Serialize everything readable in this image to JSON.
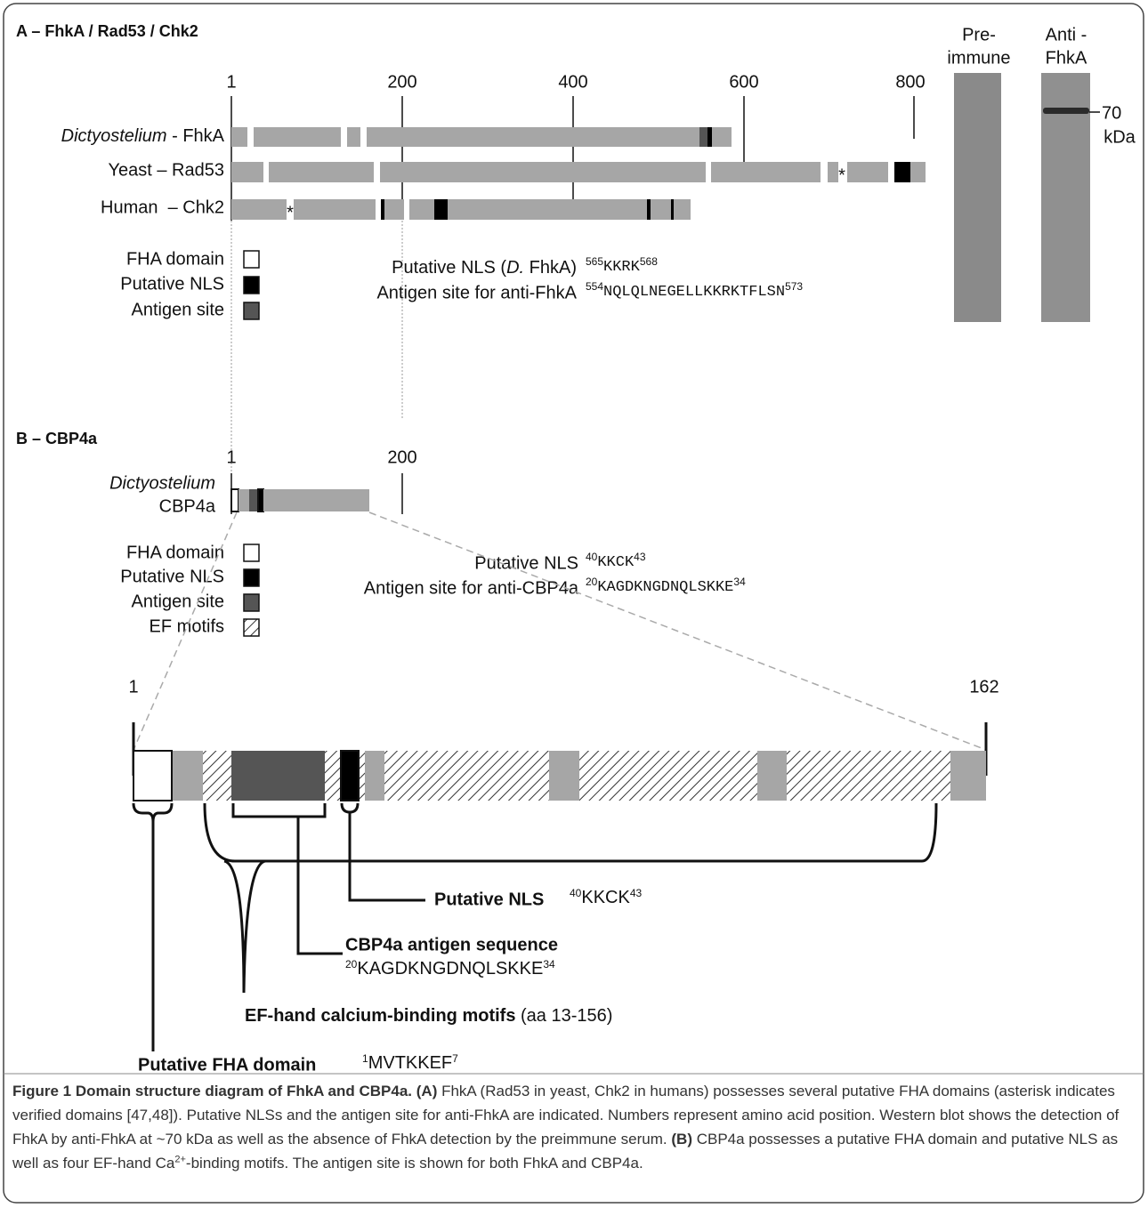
{
  "panel_a": {
    "title": "A – FhkA / Rad53 / Chk2",
    "scale": [
      "1",
      "200",
      "400",
      "600",
      "800"
    ],
    "proteins": [
      {
        "organism": "Dictyostelium",
        "name": " - FhkA"
      },
      {
        "name": "Yeast – Rad53"
      },
      {
        "name": "Human  – Chk2"
      }
    ],
    "asterisk": "*",
    "legend": [
      "FHA domain",
      "Putative NLS",
      "Antigen site"
    ],
    "nls": {
      "label": "Putative NLS (",
      "species": "D.",
      "label_end": " FhkA)",
      "start": "565",
      "sequence": "KKRK",
      "end": "568"
    },
    "antigen": {
      "label": "Antigen site for anti-FhkA",
      "start": "554",
      "sequence": "NQLQLNEGELLKKRKTFLSN",
      "end": "573"
    },
    "blot": {
      "lanes": [
        [
          "Pre-",
          "immune"
        ],
        [
          "Anti -",
          "FhkA"
        ]
      ],
      "marker": "70",
      "marker_unit": "kDa"
    }
  },
  "panel_b": {
    "title": "B – CBP4a",
    "scale": [
      "1",
      "200"
    ],
    "protein": {
      "organism": "Dictyostelium",
      "name": "CBP4a"
    },
    "legend": [
      "FHA domain",
      "Putative NLS",
      "Antigen site",
      "EF motifs"
    ],
    "nls": {
      "label": "Putative NLS",
      "start": "40",
      "sequence": "KKCK",
      "end": "43"
    },
    "antigen": {
      "label": "Antigen site for anti-CBP4a",
      "start": "20",
      "sequence": "KAGDKNGDNQLSKKE",
      "end": "34"
    }
  },
  "detail": {
    "scale": [
      "1",
      "162"
    ],
    "nls": {
      "label": "Putative NLS",
      "start": "40",
      "sequence": "KKCK",
      "end": "43"
    },
    "antigen": {
      "label": "CBP4a antigen sequence",
      "start": "20",
      "sequence": "KAGDKNGDNQLSKKE",
      "end": "34"
    },
    "ef": {
      "label": "EF-hand calcium-binding motifs",
      "range": " (aa 13-156)"
    },
    "fha": {
      "label": "Putative FHA domain",
      "start": "1",
      "sequence": "MVTKKEF",
      "end": "7"
    }
  },
  "caption": {
    "title": "Figure 1 Domain structure diagram of FhkA and CBP4a.",
    "a_label": "(A)",
    "a_text": " FhkA (Rad53 in yeast, Chk2 in humans) possesses several putative FHA domains (asterisk indicates verified domains [47,48]). Putative NLSs and the antigen site for anti-FhkA are indicated. Numbers represent amino acid position. Western blot shows the detection of FhkA by anti-FhkA at ~70 kDa as well as the absence of FhkA detection by the preimmune serum.",
    "b_label": "(B)",
    "b_text": " CBP4a possesses a putative FHA domain and putative NLS as well as four EF-hand Ca",
    "b_sup": "2+",
    "b_text_end": "-binding motifs. The antigen site is shown for both FhkA and CBP4a."
  }
}
